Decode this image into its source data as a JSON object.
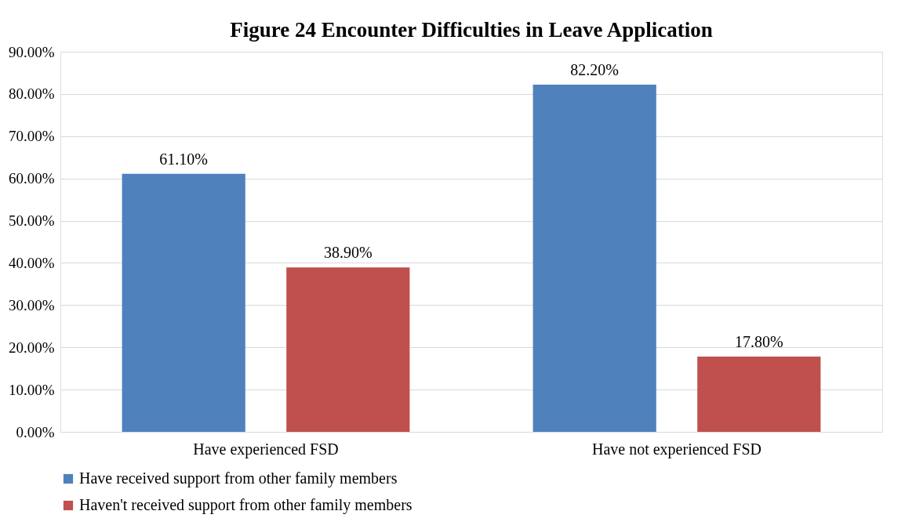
{
  "chart_data": {
    "type": "bar",
    "title": "Figure 24 Encounter Difficulties in Leave Application",
    "categories": [
      "Have experienced FSD",
      "Have not experienced FSD"
    ],
    "series": [
      {
        "name": "Have received support from other family members",
        "color": "#4f81bd",
        "values": [
          61.1,
          82.2
        ],
        "value_labels": [
          "61.10%",
          "82.20%"
        ]
      },
      {
        "name": "Haven't received support from other family members",
        "color": "#c0504d",
        "values": [
          38.9,
          17.8
        ],
        "value_labels": [
          "38.90%",
          "17.80%"
        ]
      }
    ],
    "ylim": [
      0,
      90
    ],
    "yticks": [
      {
        "value": 0,
        "label": "0.00%"
      },
      {
        "value": 10,
        "label": "10.00%"
      },
      {
        "value": 20,
        "label": "20.00%"
      },
      {
        "value": 30,
        "label": "30.00%"
      },
      {
        "value": 40,
        "label": "40.00%"
      },
      {
        "value": 50,
        "label": "50.00%"
      },
      {
        "value": 60,
        "label": "60.00%"
      },
      {
        "value": 70,
        "label": "70.00%"
      },
      {
        "value": 80,
        "label": "80.00%"
      },
      {
        "value": 90,
        "label": "90.00%"
      }
    ],
    "grid": "y",
    "legend": "bottom"
  }
}
